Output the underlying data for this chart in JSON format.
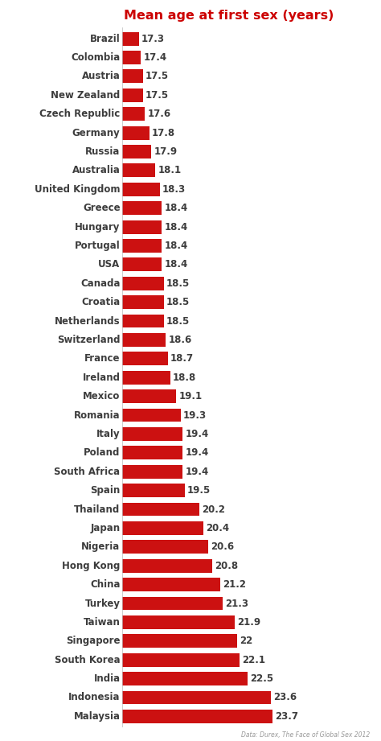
{
  "title": "Mean age at first sex (years)",
  "title_color": "#cc0000",
  "bar_color": "#cc1111",
  "label_color": "#3d3d3d",
  "value_color": "#3d3d3d",
  "background_color": "#ffffff",
  "footnote": "Data: Durex, The Face of Global Sex 2012",
  "categories": [
    "Brazil",
    "Colombia",
    "Austria",
    "New Zealand",
    "Czech Republic",
    "Germany",
    "Russia",
    "Australia",
    "United Kingdom",
    "Greece",
    "Hungary",
    "Portugal",
    "USA",
    "Canada",
    "Croatia",
    "Netherlands",
    "Switzerland",
    "France",
    "Ireland",
    "Mexico",
    "Romania",
    "Italy",
    "Poland",
    "South Africa",
    "Spain",
    "Thailand",
    "Japan",
    "Nigeria",
    "Hong Kong",
    "China",
    "Turkey",
    "Taiwan",
    "Singapore",
    "South Korea",
    "India",
    "Indonesia",
    "Malaysia"
  ],
  "values": [
    17.3,
    17.4,
    17.5,
    17.5,
    17.6,
    17.8,
    17.9,
    18.1,
    18.3,
    18.4,
    18.4,
    18.4,
    18.4,
    18.5,
    18.5,
    18.5,
    18.6,
    18.7,
    18.8,
    19.1,
    19.3,
    19.4,
    19.4,
    19.4,
    19.5,
    20.2,
    20.4,
    20.6,
    20.8,
    21.2,
    21.3,
    21.9,
    22.0,
    22.1,
    22.5,
    23.6,
    23.7
  ],
  "value_labels": [
    "17.3",
    "17.4",
    "17.5",
    "17.5",
    "17.6",
    "17.8",
    "17.9",
    "18.1",
    "18.3",
    "18.4",
    "18.4",
    "18.4",
    "18.4",
    "18.5",
    "18.5",
    "18.5",
    "18.6",
    "18.7",
    "18.8",
    "19.1",
    "19.3",
    "19.4",
    "19.4",
    "19.4",
    "19.5",
    "20.2",
    "20.4",
    "20.6",
    "20.8",
    "21.2",
    "21.3",
    "21.9",
    "22",
    "22.1",
    "22.5",
    "23.6",
    "23.7"
  ]
}
